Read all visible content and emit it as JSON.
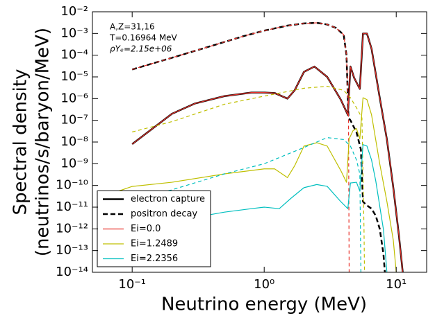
{
  "chart_data": {
    "type": "line",
    "xlabel": "Neutrino energy (MeV)",
    "ylabel": [
      "Spectral density",
      "(neutrinos/s/baryon/MeV)"
    ],
    "annotations": [
      "A,Z=31,16",
      "T=0.16964 MeV",
      "ρYₑ=2.15e+06"
    ],
    "xscale": "log",
    "yscale": "log",
    "xlim": [
      0.05,
      17
    ],
    "ylim": [
      1e-14,
      0.01
    ],
    "xticks": [
      {
        "value": 0.1,
        "label": "10⁻¹"
      },
      {
        "value": 1,
        "label": "10⁰"
      },
      {
        "value": 10,
        "label": "10¹"
      }
    ],
    "yticks": [
      {
        "value": 0.01,
        "label": "10⁻²"
      },
      {
        "value": 0.001,
        "label": "10⁻³"
      },
      {
        "value": 0.0001,
        "label": "10⁻⁴"
      },
      {
        "value": 1e-05,
        "label": "10⁻⁵"
      },
      {
        "value": 1e-06,
        "label": "10⁻⁶"
      },
      {
        "value": 1e-07,
        "label": "10⁻⁷"
      },
      {
        "value": 1e-08,
        "label": "10⁻⁸"
      },
      {
        "value": 1e-09,
        "label": "10⁻⁹"
      },
      {
        "value": 1e-10,
        "label": "10⁻¹⁰"
      },
      {
        "value": 1e-11,
        "label": "10⁻¹¹"
      },
      {
        "value": 1e-12,
        "label": "10⁻¹²"
      },
      {
        "value": 1e-13,
        "label": "10⁻¹³"
      },
      {
        "value": 1e-14,
        "label": "10⁻¹⁴"
      }
    ],
    "grid": false,
    "legend": "lower left",
    "series": [
      {
        "name": "electron capture",
        "color": "#000000",
        "style": "solid",
        "x": [
          0.1,
          0.2,
          0.3,
          0.5,
          0.8,
          1.0,
          1.2,
          1.5,
          1.7,
          2.0,
          2.4,
          3.0,
          3.8,
          4.3,
          4.5,
          4.8,
          5.3,
          5.6,
          6.0,
          6.5,
          7.5,
          8.5,
          9.5,
          10.5,
          11.2
        ],
        "values": [
          8e-09,
          2e-07,
          6e-07,
          1.3e-06,
          1.9e-06,
          1.9e-06,
          1.8e-06,
          1e-06,
          2.4e-06,
          1.7e-05,
          3e-05,
          1e-05,
          9e-07,
          1.8e-07,
          3e-05,
          9e-06,
          2.8e-06,
          0.001,
          0.001,
          0.0002,
          1.1e-06,
          1.3e-08,
          8e-11,
          4.5e-13,
          1e-14
        ]
      },
      {
        "name": "positron decay",
        "color": "#000000",
        "style": "dashed",
        "x": [
          0.1,
          0.2,
          0.4,
          0.7,
          1.0,
          1.5,
          2.0,
          2.5,
          3.0,
          3.5,
          4.0,
          4.2,
          4.35,
          4.5,
          5.0,
          5.4,
          5.6,
          5.9,
          6.5,
          7.0,
          7.5,
          8.0,
          8.2
        ],
        "values": [
          2.2e-05,
          7.6e-05,
          0.00027,
          0.00076,
          0.00135,
          0.0023,
          0.0029,
          0.0031,
          0.0026,
          0.0018,
          0.00087,
          0.0001,
          1.3e-07,
          1e-07,
          2.8e-08,
          4.5e-09,
          1.8e-11,
          1.3e-11,
          8.5e-12,
          4e-12,
          1e-12,
          7e-14,
          1e-14
        ]
      },
      {
        "name": "Ei=0.0",
        "color": "#e8312a",
        "style": "solid",
        "x": [
          0.1,
          0.2,
          0.3,
          0.5,
          0.8,
          1.0,
          1.2,
          1.5,
          1.7,
          2.0,
          2.4,
          3.0,
          3.8,
          4.3,
          4.5,
          4.8,
          5.3,
          5.6,
          6.0,
          6.5,
          7.5,
          8.5,
          9.5,
          10.5,
          11.2
        ],
        "values": [
          8e-09,
          2e-07,
          6e-07,
          1.3e-06,
          1.9e-06,
          1.9e-06,
          1.8e-06,
          1e-06,
          2.4e-06,
          1.7e-05,
          3e-05,
          1e-05,
          9e-07,
          1.8e-07,
          3e-05,
          9e-06,
          2.8e-06,
          0.001,
          0.001,
          0.0002,
          1.1e-06,
          1.3e-08,
          8e-11,
          4.5e-13,
          1e-14
        ]
      },
      {
        "color": "#e8312a",
        "style": "dashed",
        "x": [
          0.1,
          0.2,
          0.4,
          0.7,
          1.0,
          1.5,
          2.0,
          2.5,
          3.0,
          3.5,
          4.0,
          4.2,
          4.35,
          4.4
        ],
        "values": [
          2.2e-05,
          7.6e-05,
          0.00027,
          0.00076,
          0.00135,
          0.0023,
          0.0029,
          0.0031,
          0.0026,
          0.0018,
          0.00087,
          0.0001,
          1.3e-07,
          1e-14
        ]
      },
      {
        "name": "Ei=1.2489",
        "color": "#bfbf00",
        "style": "solid",
        "x": [
          0.07,
          0.1,
          0.2,
          0.5,
          1.0,
          1.2,
          1.5,
          1.7,
          2.0,
          2.5,
          3.0,
          3.8,
          4.2,
          4.4,
          4.7,
          5.0,
          5.3,
          5.6,
          6.0,
          6.5,
          7.5,
          8.5,
          9.5,
          10
        ],
        "values": [
          4.3e-11,
          9e-11,
          1.4e-10,
          3.4e-10,
          5.8e-10,
          5.8e-10,
          2.3e-10,
          8e-10,
          6.5e-09,
          9.3e-09,
          6.5e-09,
          4.9e-10,
          1.4e-10,
          1.4e-08,
          3.3e-08,
          4.2e-08,
          1.4e-08,
          1.1e-06,
          9e-07,
          1.8e-07,
          1e-09,
          1.8e-11,
          3e-13,
          1e-14
        ]
      },
      {
        "color": "#bfbf00",
        "style": "dashed",
        "x": [
          0.1,
          0.2,
          0.5,
          1.0,
          2.0,
          3.0,
          4.0,
          4.5,
          5.0,
          5.5,
          5.7,
          5.75
        ],
        "values": [
          2.9e-08,
          8.7e-08,
          5.5e-07,
          1.3e-06,
          3e-06,
          3.7e-06,
          2.4e-06,
          1.1e-06,
          3.8e-07,
          1.3e-07,
          1e-12,
          1e-14
        ]
      },
      {
        "name": "Ei=2.2356",
        "color": "#00bfbf",
        "style": "solid",
        "x": [
          0.07,
          0.1,
          0.2,
          0.5,
          0.8,
          1.0,
          1.3,
          1.6,
          2.0,
          2.5,
          3.0,
          3.8,
          4.3,
          4.5,
          5.0,
          5.3,
          5.6,
          6.0,
          6.5,
          7.0,
          8.0,
          8.5
        ],
        "values": [
          1e-12,
          1.3e-12,
          2.2e-12,
          5.9e-12,
          8.5e-12,
          1e-11,
          8.5e-12,
          2.6e-11,
          7.9e-11,
          1.1e-10,
          9.1e-11,
          1.8e-11,
          8.5e-12,
          1.3e-10,
          1.4e-10,
          5.4e-11,
          7.6e-09,
          6.5e-09,
          1.5e-09,
          1.6e-10,
          9.3e-13,
          1e-14
        ]
      },
      {
        "color": "#00bfbf",
        "style": "dashed",
        "x": [
          0.1,
          0.2,
          0.5,
          1.0,
          2.0,
          3.0,
          4.0,
          4.5,
          5.0,
          5.3,
          5.4
        ],
        "values": [
          1.8e-11,
          6.3e-11,
          3.4e-10,
          1e-09,
          5.6e-09,
          1.6e-08,
          1.3e-08,
          6.5e-09,
          1.5e-09,
          3.4e-10,
          1e-14
        ]
      }
    ]
  }
}
